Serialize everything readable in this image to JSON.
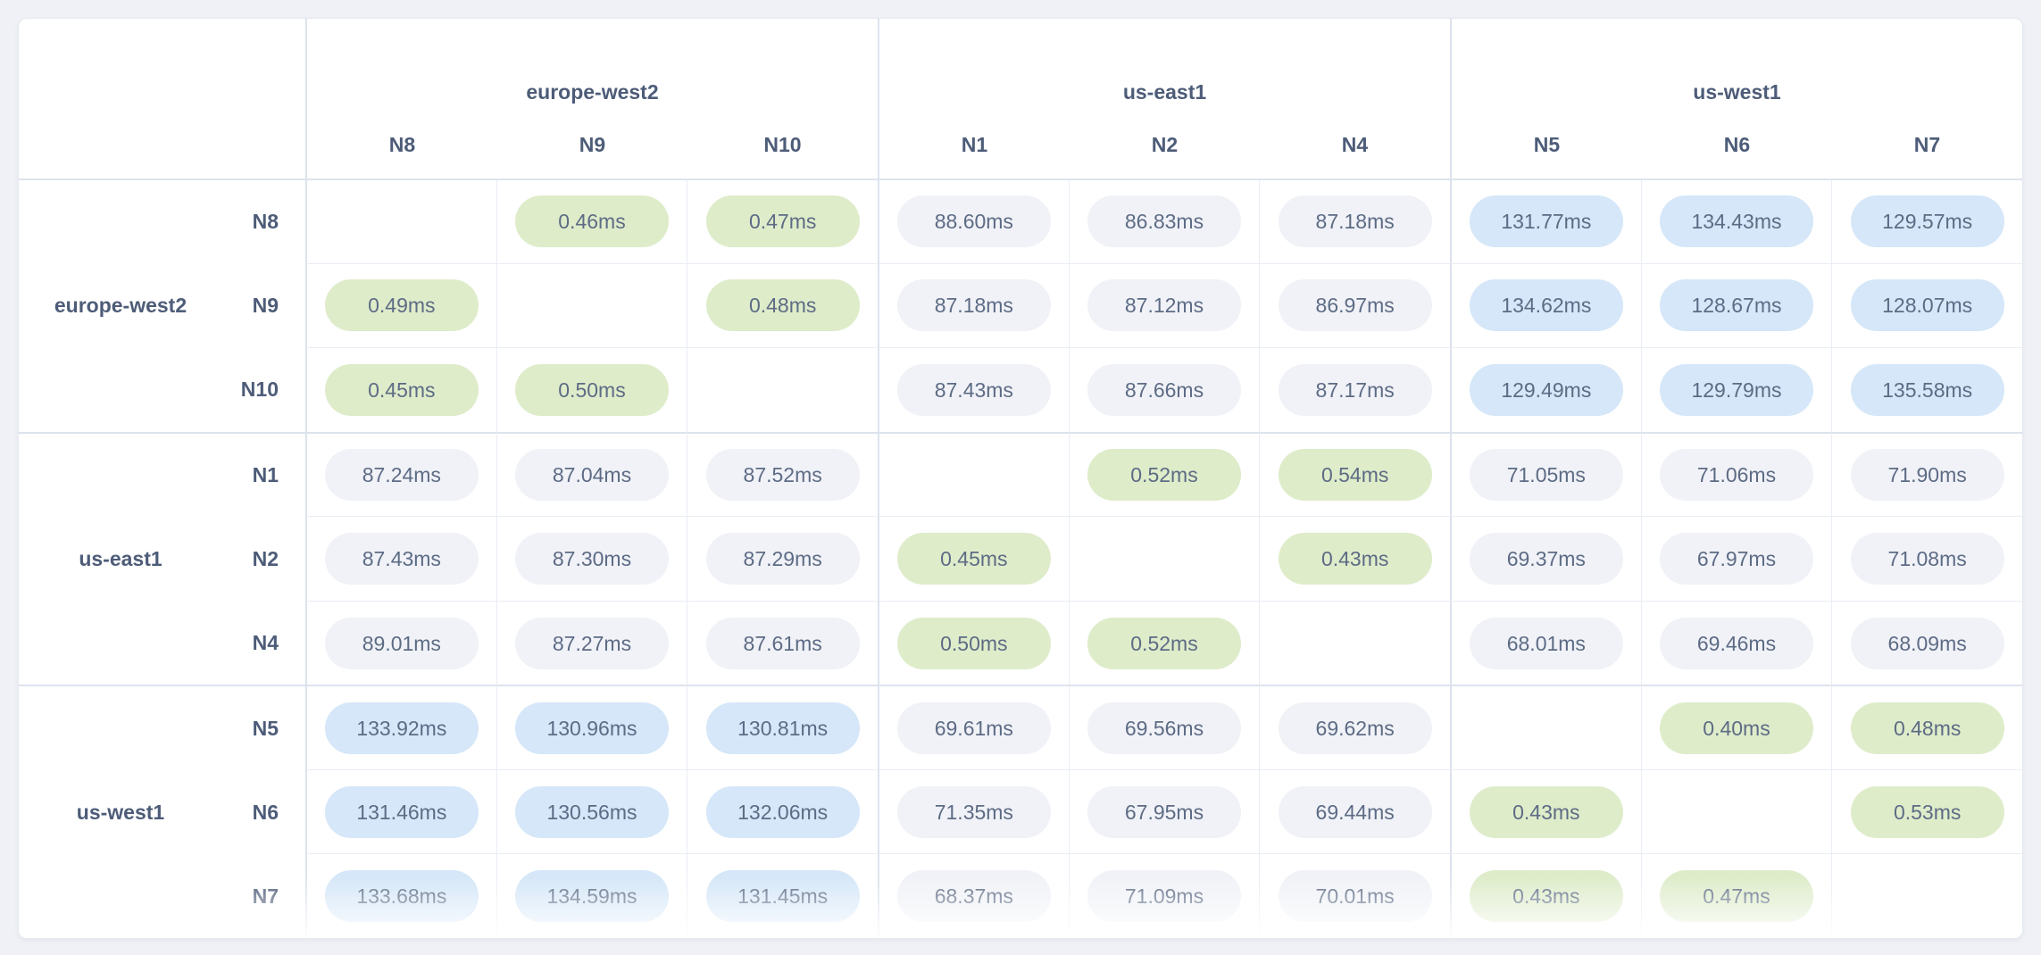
{
  "colors": {
    "page_background": "#eff1f6",
    "card_background": "#ffffff",
    "same_region_pill": "#deecca",
    "high_latency_pill": "#d5e7f8",
    "neutral_pill": "#f0f2f7",
    "pill_text": "#5d6b85",
    "label_text": "#4d5c78"
  },
  "matrix": {
    "unit": "ms",
    "column_groups": [
      {
        "region": "europe-west2",
        "nodes": [
          "N8",
          "N9",
          "N10"
        ]
      },
      {
        "region": "us-east1",
        "nodes": [
          "N1",
          "N2",
          "N4"
        ]
      },
      {
        "region": "us-west1",
        "nodes": [
          "N5",
          "N6",
          "N7"
        ]
      }
    ],
    "row_groups": [
      {
        "region": "europe-west2",
        "rows": [
          {
            "node": "N8",
            "cells": [
              {
                "v": "",
                "t": "empty"
              },
              {
                "v": "0.46ms",
                "t": "green"
              },
              {
                "v": "0.47ms",
                "t": "green"
              },
              {
                "v": "88.60ms",
                "t": "neutral"
              },
              {
                "v": "86.83ms",
                "t": "neutral"
              },
              {
                "v": "87.18ms",
                "t": "neutral"
              },
              {
                "v": "131.77ms",
                "t": "blue"
              },
              {
                "v": "134.43ms",
                "t": "blue"
              },
              {
                "v": "129.57ms",
                "t": "blue"
              }
            ]
          },
          {
            "node": "N9",
            "cells": [
              {
                "v": "0.49ms",
                "t": "green"
              },
              {
                "v": "",
                "t": "empty"
              },
              {
                "v": "0.48ms",
                "t": "green"
              },
              {
                "v": "87.18ms",
                "t": "neutral"
              },
              {
                "v": "87.12ms",
                "t": "neutral"
              },
              {
                "v": "86.97ms",
                "t": "neutral"
              },
              {
                "v": "134.62ms",
                "t": "blue"
              },
              {
                "v": "128.67ms",
                "t": "blue"
              },
              {
                "v": "128.07ms",
                "t": "blue"
              }
            ]
          },
          {
            "node": "N10",
            "cells": [
              {
                "v": "0.45ms",
                "t": "green"
              },
              {
                "v": "0.50ms",
                "t": "green"
              },
              {
                "v": "",
                "t": "empty"
              },
              {
                "v": "87.43ms",
                "t": "neutral"
              },
              {
                "v": "87.66ms",
                "t": "neutral"
              },
              {
                "v": "87.17ms",
                "t": "neutral"
              },
              {
                "v": "129.49ms",
                "t": "blue"
              },
              {
                "v": "129.79ms",
                "t": "blue"
              },
              {
                "v": "135.58ms",
                "t": "blue"
              }
            ]
          }
        ]
      },
      {
        "region": "us-east1",
        "rows": [
          {
            "node": "N1",
            "cells": [
              {
                "v": "87.24ms",
                "t": "neutral"
              },
              {
                "v": "87.04ms",
                "t": "neutral"
              },
              {
                "v": "87.52ms",
                "t": "neutral"
              },
              {
                "v": "",
                "t": "empty"
              },
              {
                "v": "0.52ms",
                "t": "green"
              },
              {
                "v": "0.54ms",
                "t": "green"
              },
              {
                "v": "71.05ms",
                "t": "neutral"
              },
              {
                "v": "71.06ms",
                "t": "neutral"
              },
              {
                "v": "71.90ms",
                "t": "neutral"
              }
            ]
          },
          {
            "node": "N2",
            "cells": [
              {
                "v": "87.43ms",
                "t": "neutral"
              },
              {
                "v": "87.30ms",
                "t": "neutral"
              },
              {
                "v": "87.29ms",
                "t": "neutral"
              },
              {
                "v": "0.45ms",
                "t": "green"
              },
              {
                "v": "",
                "t": "empty"
              },
              {
                "v": "0.43ms",
                "t": "green"
              },
              {
                "v": "69.37ms",
                "t": "neutral"
              },
              {
                "v": "67.97ms",
                "t": "neutral"
              },
              {
                "v": "71.08ms",
                "t": "neutral"
              }
            ]
          },
          {
            "node": "N4",
            "cells": [
              {
                "v": "89.01ms",
                "t": "neutral"
              },
              {
                "v": "87.27ms",
                "t": "neutral"
              },
              {
                "v": "87.61ms",
                "t": "neutral"
              },
              {
                "v": "0.50ms",
                "t": "green"
              },
              {
                "v": "0.52ms",
                "t": "green"
              },
              {
                "v": "",
                "t": "empty"
              },
              {
                "v": "68.01ms",
                "t": "neutral"
              },
              {
                "v": "69.46ms",
                "t": "neutral"
              },
              {
                "v": "68.09ms",
                "t": "neutral"
              }
            ]
          }
        ]
      },
      {
        "region": "us-west1",
        "rows": [
          {
            "node": "N5",
            "cells": [
              {
                "v": "133.92ms",
                "t": "blue"
              },
              {
                "v": "130.96ms",
                "t": "blue"
              },
              {
                "v": "130.81ms",
                "t": "blue"
              },
              {
                "v": "69.61ms",
                "t": "neutral"
              },
              {
                "v": "69.56ms",
                "t": "neutral"
              },
              {
                "v": "69.62ms",
                "t": "neutral"
              },
              {
                "v": "",
                "t": "empty"
              },
              {
                "v": "0.40ms",
                "t": "green"
              },
              {
                "v": "0.48ms",
                "t": "green"
              }
            ]
          },
          {
            "node": "N6",
            "cells": [
              {
                "v": "131.46ms",
                "t": "blue"
              },
              {
                "v": "130.56ms",
                "t": "blue"
              },
              {
                "v": "132.06ms",
                "t": "blue"
              },
              {
                "v": "71.35ms",
                "t": "neutral"
              },
              {
                "v": "67.95ms",
                "t": "neutral"
              },
              {
                "v": "69.44ms",
                "t": "neutral"
              },
              {
                "v": "0.43ms",
                "t": "green"
              },
              {
                "v": "",
                "t": "empty"
              },
              {
                "v": "0.53ms",
                "t": "green"
              }
            ]
          },
          {
            "node": "N7",
            "cells": [
              {
                "v": "133.68ms",
                "t": "blue"
              },
              {
                "v": "134.59ms",
                "t": "blue"
              },
              {
                "v": "131.45ms",
                "t": "blue"
              },
              {
                "v": "68.37ms",
                "t": "neutral"
              },
              {
                "v": "71.09ms",
                "t": "neutral"
              },
              {
                "v": "70.01ms",
                "t": "neutral"
              },
              {
                "v": "0.43ms",
                "t": "green"
              },
              {
                "v": "0.47ms",
                "t": "green"
              },
              {
                "v": "",
                "t": "empty"
              }
            ]
          }
        ]
      }
    ]
  },
  "chart_data": {
    "type": "heatmap",
    "unit": "ms",
    "columns": [
      "N8",
      "N9",
      "N10",
      "N1",
      "N2",
      "N4",
      "N5",
      "N6",
      "N7"
    ],
    "rows": [
      "N8",
      "N9",
      "N10",
      "N1",
      "N2",
      "N4",
      "N5",
      "N6",
      "N7"
    ],
    "region_of_node": [
      "europe-west2",
      "europe-west2",
      "europe-west2",
      "us-east1",
      "us-east1",
      "us-east1",
      "us-west1",
      "us-west1",
      "us-west1"
    ],
    "values_ms": [
      [
        null,
        0.46,
        0.47,
        88.6,
        86.83,
        87.18,
        131.77,
        134.43,
        129.57
      ],
      [
        0.49,
        null,
        0.48,
        87.18,
        87.12,
        86.97,
        134.62,
        128.67,
        128.07
      ],
      [
        0.45,
        0.5,
        null,
        87.43,
        87.66,
        87.17,
        129.49,
        129.79,
        135.58
      ],
      [
        87.24,
        87.04,
        87.52,
        null,
        0.52,
        0.54,
        71.05,
        71.06,
        71.9
      ],
      [
        87.43,
        87.3,
        87.29,
        0.45,
        null,
        0.43,
        69.37,
        67.97,
        71.08
      ],
      [
        89.01,
        87.27,
        87.61,
        0.5,
        0.52,
        null,
        68.01,
        69.46,
        68.09
      ],
      [
        133.92,
        130.96,
        130.81,
        69.61,
        69.56,
        69.62,
        null,
        0.4,
        0.48
      ],
      [
        131.46,
        130.56,
        132.06,
        71.35,
        67.95,
        69.44,
        0.43,
        null,
        0.53
      ],
      [
        133.68,
        134.59,
        131.45,
        68.37,
        71.09,
        70.01,
        0.43,
        0.47,
        null
      ]
    ]
  }
}
